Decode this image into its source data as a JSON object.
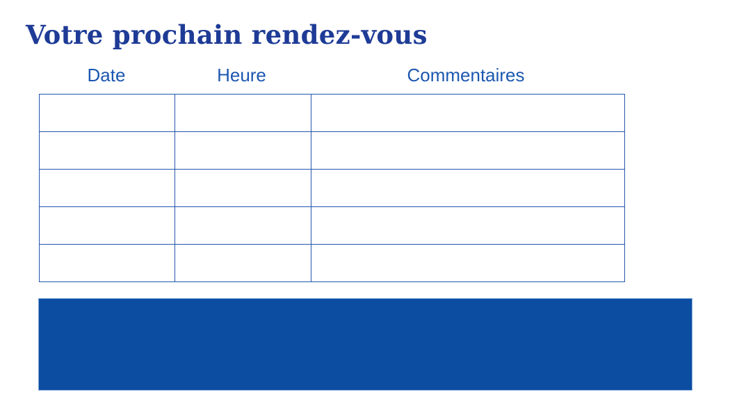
{
  "title": "Votre prochain rendez-vous",
  "table": {
    "headers": [
      "Date",
      "Heure",
      "Commentaires"
    ],
    "rows": [
      [
        "",
        "",
        ""
      ],
      [
        "",
        "",
        ""
      ],
      [
        "",
        "",
        ""
      ],
      [
        "",
        "",
        ""
      ],
      [
        "",
        "",
        ""
      ]
    ]
  },
  "colors": {
    "title": "#1e3b96",
    "header_text": "#1c57b0",
    "table_border": "#2456ab",
    "footer_block": "#0c4da2"
  }
}
